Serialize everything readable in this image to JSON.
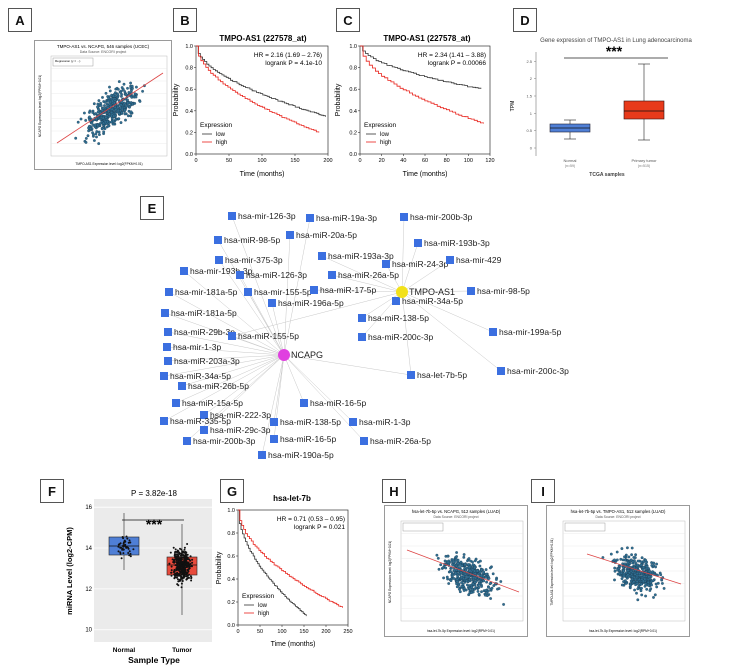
{
  "panels": {
    "A": {
      "letter": "A",
      "title": "TMPO-AS1 vs. NCAPG, 546 samples (UCEC)",
      "subtitle": "Data Source: ENCORI project",
      "xlabel": "TMPO-AS1 Expression level: log2(FPKM+0.01)",
      "ylabel": "NCAPG Expression level: log2(FPKM+0.01)",
      "legend": "Regression (y = ...)"
    },
    "B": {
      "letter": "B",
      "title": "TMPO-AS1 (227578_at)",
      "hr": "HR = 2.16 (1.69 – 2.76)",
      "logrank": "logrank P = 4.1e-10",
      "xlabel": "Time (months)",
      "ylabel": "Probability",
      "legend_title": "Expression",
      "low": "low",
      "high": "high",
      "xticks": [
        "0",
        "50",
        "100",
        "150",
        "200"
      ],
      "yticks": [
        "0.0",
        "0.2",
        "0.4",
        "0.6",
        "0.8",
        "1.0"
      ]
    },
    "C": {
      "letter": "C",
      "title": "TMPO-AS1 (227578_at)",
      "hr": "HR = 2.34 (1.41 – 3.88)",
      "logrank": "logrank P = 0.00066",
      "xlabel": "Time (months)",
      "ylabel": "Probability",
      "legend_title": "Expression",
      "low": "low",
      "high": "high",
      "xticks": [
        "0",
        "20",
        "40",
        "60",
        "80",
        "100",
        "120"
      ],
      "yticks": [
        "0.0",
        "0.2",
        "0.4",
        "0.6",
        "0.8",
        "1.0"
      ]
    },
    "D": {
      "letter": "D",
      "title": "Gene expression of TMPO-AS1 in Lung adenocarcinoma",
      "stars": "***",
      "ylabel": "TPM",
      "xlabel": "TCGA samples",
      "normal": "Normal",
      "normal_n": "(n=59)",
      "tumor": "Primary tumor",
      "tumor_n": "(n=515)",
      "yticks": [
        "0",
        "0.5",
        "1",
        "1.5",
        "2",
        "2.5"
      ]
    },
    "E": {
      "letter": "E"
    },
    "F": {
      "letter": "F",
      "pvalue": "P = 3.82e-18",
      "stars": "***",
      "ylabel": "miRNA Level (log2-CPM)",
      "xlabel": "Sample Type",
      "normal": "Normal",
      "tumor": "Tumor",
      "yticks": [
        "10",
        "12",
        "14",
        "16"
      ]
    },
    "G": {
      "letter": "G",
      "title": "hsa-let-7b",
      "hr": "HR = 0.71 (0.53 – 0.95)",
      "logrank": "logrank P = 0.021",
      "xlabel": "Time (months)",
      "ylabel": "Probability",
      "legend_title": "Expression",
      "low": "low",
      "high": "high",
      "xticks": [
        "0",
        "50",
        "100",
        "150",
        "200",
        "250"
      ],
      "yticks": [
        "0.0",
        "0.2",
        "0.4",
        "0.6",
        "0.8",
        "1.0"
      ]
    },
    "H": {
      "letter": "H",
      "title": "hsa-let-7b-5p vs. NCAPG, 512 samples (LUAD)",
      "subtitle": "Data Source: ENCORI project",
      "xlabel": "hsa-let-7b-5p Expression level: log2(RPM+0.01)",
      "ylabel": "NCAPG Expression level: log2(FPKM+0.01)"
    },
    "I": {
      "letter": "I",
      "title": "hsa-let-7b-5p vs. TMPO-AS1, 512 samples (LUAD)",
      "subtitle": "Data Source: ENCORI project",
      "xlabel": "hsa-let-7b-5p Expression level: log2(RPM+0.01)",
      "ylabel": "TMPO-AS1 Expression level: log2(FPKM+0.01)"
    }
  },
  "network": {
    "hubs": [
      {
        "id": "NCAPG",
        "label": "NCAPG",
        "color": "#e040e0"
      },
      {
        "id": "TMPO",
        "label": "TMPO-AS1",
        "color": "#f2e11a"
      }
    ],
    "nodes": [
      {
        "label": "hsa-mir-126-3p",
        "link": "N"
      },
      {
        "label": "hsa-miR-19a-3p",
        "link": "N"
      },
      {
        "label": "hsa-mir-200b-3p",
        "link": "T"
      },
      {
        "label": "hsa-miR-98-5p",
        "link": "N"
      },
      {
        "label": "hsa-miR-20a-5p",
        "link": "N"
      },
      {
        "label": "hsa-miR-193b-3p",
        "link": "T"
      },
      {
        "label": "hsa-mir-375-3p",
        "link": "N"
      },
      {
        "label": "hsa-miR-193a-3p",
        "link": "T"
      },
      {
        "label": "hsa-mir-193b-3p",
        "link": "N"
      },
      {
        "label": "hsa-miR-126-3p",
        "link": "N"
      },
      {
        "label": "hsa-miR-24-3p",
        "link": "T"
      },
      {
        "label": "hsa-mir-429",
        "link": "T"
      },
      {
        "label": "hsa-miR-26a-5p",
        "link": "T"
      },
      {
        "label": "hsa-mir-181a-5p",
        "link": "N"
      },
      {
        "label": "hsa-mir-155-5p",
        "link": "N"
      },
      {
        "label": "hsa-miR-17-5p",
        "link": "T"
      },
      {
        "label": "hsa-mir-98-5p",
        "link": "T"
      },
      {
        "label": "hsa-miR-196a-5p",
        "link": "N"
      },
      {
        "label": "hsa-miR-34a-5p",
        "link": "T"
      },
      {
        "label": "hsa-miR-181a-5p",
        "link": "N"
      },
      {
        "label": "hsa-miR-138-5p",
        "link": "T"
      },
      {
        "label": "hsa-miR-29b-3p",
        "link": "N"
      },
      {
        "label": "hsa-miR-155-5p",
        "link": "B"
      },
      {
        "label": "hsa-miR-200c-3p",
        "link": "T"
      },
      {
        "label": "hsa-mir-199a-5p",
        "link": "T"
      },
      {
        "label": "hsa-mir-1-3p",
        "link": "N"
      },
      {
        "label": "hsa-miR-203a-3p",
        "link": "N"
      },
      {
        "label": "hsa-mir-200c-3p",
        "link": "T"
      },
      {
        "label": "hsa-miR-34a-5p",
        "link": "N"
      },
      {
        "label": "hsa-let-7b-5p",
        "link": "B"
      },
      {
        "label": "hsa-miR-26b-5p",
        "link": "N"
      },
      {
        "label": "hsa-miR-15a-5p",
        "link": "N"
      },
      {
        "label": "hsa-miR-16-5p",
        "link": "N"
      },
      {
        "label": "hsa-miR-222-3p",
        "link": "N"
      },
      {
        "label": "hsa-miR-335-5p",
        "link": "N"
      },
      {
        "label": "hsa-miR-138-5p",
        "link": "N"
      },
      {
        "label": "hsa-miR-1-3p",
        "link": "N"
      },
      {
        "label": "hsa-miR-29c-3p",
        "link": "N"
      },
      {
        "label": "hsa-mir-200b-3p",
        "link": "N"
      },
      {
        "label": "hsa-miR-16-5p",
        "link": "N"
      },
      {
        "label": "hsa-miR-26a-5p",
        "link": "N"
      },
      {
        "label": "hsa-miR-190a-5p",
        "link": "N"
      }
    ]
  },
  "colors": {
    "high": "#e8221b",
    "low": "#333333",
    "node": "#3b6fe0",
    "scatter": "#2f6e91",
    "normal_box": "#4f7fd6",
    "tumor_box": "#e83a1b"
  }
}
